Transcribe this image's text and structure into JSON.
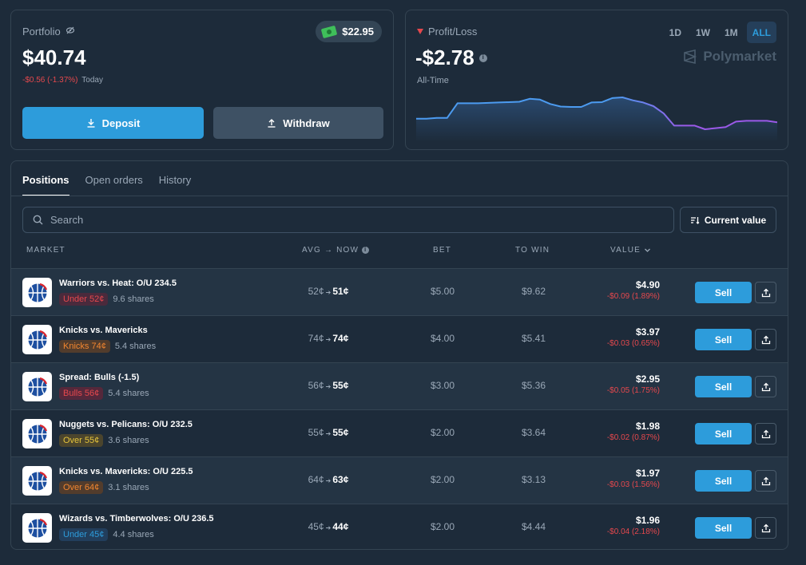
{
  "portfolio": {
    "label": "Portfolio",
    "value": "$40.74",
    "change": "-$0.56 (-1.37%)",
    "change_period": "Today",
    "cash": "$22.95",
    "deposit_label": "Deposit",
    "withdraw_label": "Withdraw"
  },
  "pnl": {
    "label": "Profit/Loss",
    "value": "-$2.78",
    "period": "All-Time",
    "ranges": [
      "1D",
      "1W",
      "1M",
      "ALL"
    ],
    "active_range": "ALL",
    "brand": "Polymarket",
    "chart_data": {
      "type": "area",
      "series_values": [
        0.42,
        0.42,
        0.44,
        0.44,
        0.84,
        0.84,
        0.84,
        0.85,
        0.86,
        0.87,
        0.88,
        0.96,
        0.94,
        0.82,
        0.75,
        0.74,
        0.74,
        0.86,
        0.87,
        0.98,
        1.0,
        0.92,
        0.86,
        0.76,
        0.56,
        0.23,
        0.23,
        0.23,
        0.13,
        0.16,
        0.19,
        0.34,
        0.36,
        0.36,
        0.36,
        0.32
      ]
    },
    "colors": {
      "line_start": "#4c9bf0",
      "line_end": "#9b59e8"
    }
  },
  "positions": {
    "tabs": [
      "Positions",
      "Open orders",
      "History"
    ],
    "active_tab": "Positions",
    "search_placeholder": "Search",
    "sort_label": "Current value",
    "headers": {
      "market": "MARKET",
      "avg_now": "AVG → NOW",
      "bet": "BET",
      "to_win": "TO WIN",
      "value": "VALUE"
    },
    "sell_label": "Sell",
    "rows": [
      {
        "title": "Warriors vs. Heat: O/U 234.5",
        "outcome": "Under 52¢",
        "outcome_color": "red",
        "shares": "9.6 shares",
        "avg": "52¢",
        "now": "51¢",
        "bet": "$5.00",
        "to_win": "$9.62",
        "value": "$4.90",
        "change": "-$0.09 (1.89%)"
      },
      {
        "title": "Knicks vs. Mavericks",
        "outcome": "Knicks 74¢",
        "outcome_color": "orange",
        "shares": "5.4 shares",
        "avg": "74¢",
        "now": "74¢",
        "bet": "$4.00",
        "to_win": "$5.41",
        "value": "$3.97",
        "change": "-$0.03 (0.65%)"
      },
      {
        "title": "Spread: Bulls (-1.5)",
        "outcome": "Bulls 56¢",
        "outcome_color": "crimson",
        "shares": "5.4 shares",
        "avg": "56¢",
        "now": "55¢",
        "bet": "$3.00",
        "to_win": "$5.36",
        "value": "$2.95",
        "change": "-$0.05 (1.75%)"
      },
      {
        "title": "Nuggets vs. Pelicans: O/U 232.5",
        "outcome": "Over 55¢",
        "outcome_color": "yellow",
        "shares": "3.6 shares",
        "avg": "55¢",
        "now": "55¢",
        "bet": "$2.00",
        "to_win": "$3.64",
        "value": "$1.98",
        "change": "-$0.02 (0.87%)"
      },
      {
        "title": "Knicks vs. Mavericks: O/U 225.5",
        "outcome": "Over 64¢",
        "outcome_color": "orange",
        "shares": "3.1 shares",
        "avg": "64¢",
        "now": "63¢",
        "bet": "$2.00",
        "to_win": "$3.13",
        "value": "$1.97",
        "change": "-$0.03 (1.56%)"
      },
      {
        "title": "Wizards vs. Timberwolves: O/U 236.5",
        "outcome": "Under 45¢",
        "outcome_color": "blue",
        "shares": "4.4 shares",
        "avg": "45¢",
        "now": "44¢",
        "bet": "$2.00",
        "to_win": "$4.44",
        "value": "$1.96",
        "change": "-$0.04 (2.18%)"
      }
    ]
  }
}
